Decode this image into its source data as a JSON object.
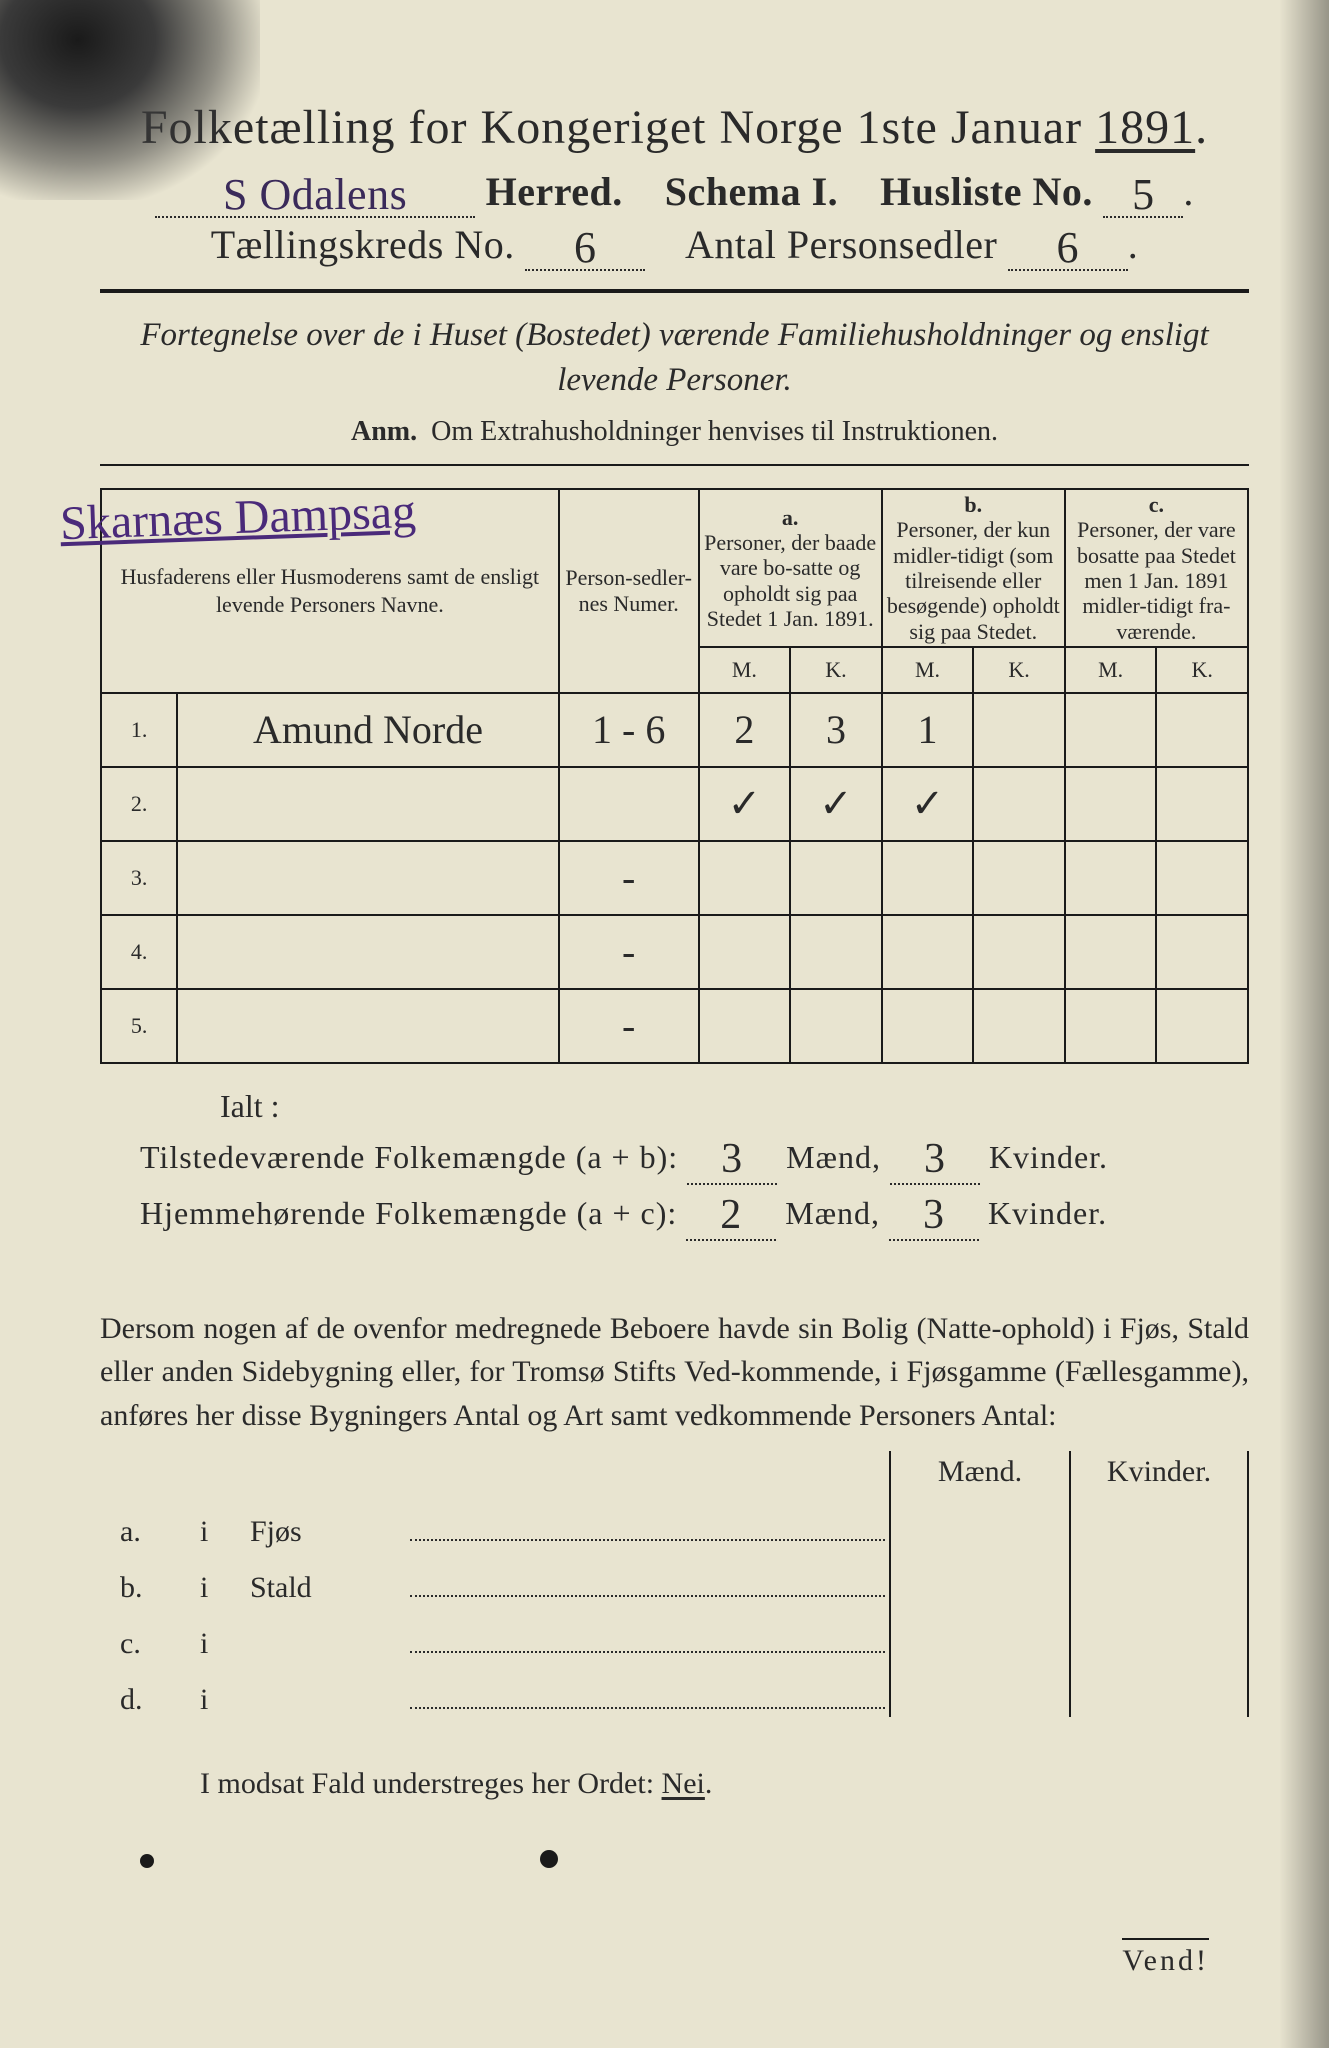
{
  "title": {
    "pre": "Folketælling for Kongeriget Norge 1ste Januar ",
    "year": "1891",
    "post": "."
  },
  "line2": {
    "herred_value": "S Odalens",
    "herred_label": "Herred.",
    "schema_label": "Schema I.",
    "husliste_label": "Husliste No.",
    "husliste_value": "5"
  },
  "line3": {
    "kreds_label": "Tællingskreds No.",
    "kreds_value": "6",
    "antal_label": "Antal Personsedler",
    "antal_value": "6"
  },
  "subtitle": "Fortegnelse over de i Huset (Bostedet) værende Familiehusholdninger og ensligt levende Personer.",
  "anm": {
    "label": "Anm.",
    "text": "Om Extrahusholdninger henvises til Instruktionen."
  },
  "place_handwritten": "Skarnæs Dampsag",
  "columns": {
    "names": "Husfaderens eller Husmoderens samt de ensligt levende Personers Navne.",
    "numer": "Person-sedler-nes Numer.",
    "a": {
      "tag": "a.",
      "text": "Personer, der baade vare bo-satte og opholdt sig paa Stedet 1 Jan. 1891."
    },
    "b": {
      "tag": "b.",
      "text": "Personer, der kun midler-tidigt (som tilreisende eller besøgende) opholdt sig paa Stedet."
    },
    "c": {
      "tag": "c.",
      "text": "Personer, der vare bosatte paa Stedet men 1 Jan. 1891 midler-tidigt fra-værende."
    },
    "m": "M.",
    "k": "K."
  },
  "rows": [
    {
      "n": "1.",
      "name": "Amund Norde",
      "numer": "1 - 6",
      "am": "2",
      "ak": "3",
      "bm": "1",
      "bk": "",
      "cm": "",
      "ck": ""
    },
    {
      "n": "2.",
      "name": "",
      "numer": "",
      "am": "✓",
      "ak": "✓",
      "bm": "✓",
      "bk": "",
      "cm": "",
      "ck": ""
    },
    {
      "n": "3.",
      "name": "",
      "numer": "-",
      "am": "",
      "ak": "",
      "bm": "",
      "bk": "",
      "cm": "",
      "ck": ""
    },
    {
      "n": "4.",
      "name": "",
      "numer": "-",
      "am": "",
      "ak": "",
      "bm": "",
      "bk": "",
      "cm": "",
      "ck": ""
    },
    {
      "n": "5.",
      "name": "",
      "numer": "-",
      "am": "",
      "ak": "",
      "bm": "",
      "bk": "",
      "cm": "",
      "ck": ""
    }
  ],
  "ialt": "Ialt :",
  "sum1": {
    "label": "Tilstedeværende Folkemængde (a + b):",
    "m": "3",
    "ml": "Mænd,",
    "k": "3",
    "kl": "Kvinder."
  },
  "sum2": {
    "label": "Hjemmehørende Folkemængde (a + c):",
    "m": "2",
    "ml": "Mænd,",
    "k": "3",
    "kl": "Kvinder."
  },
  "para": "Dersom nogen af de ovenfor medregnede Beboere havde sin Bolig (Natte-ophold) i Fjøs, Stald eller anden Sidebygning eller, for Tromsø Stifts Ved-kommende, i Fjøsgamme (Fællesgamme), anføres her disse Bygningers Antal og Art samt vedkommende Personers Antal:",
  "mk": {
    "m": "Mænd.",
    "k": "Kvinder."
  },
  "bldg": [
    {
      "l": "a.",
      "s": "i",
      "n": "Fjøs"
    },
    {
      "l": "b.",
      "s": "i",
      "n": "Stald"
    },
    {
      "l": "c.",
      "s": "i",
      "n": ""
    },
    {
      "l": "d.",
      "s": "i",
      "n": ""
    }
  ],
  "nei": {
    "pre": "I modsat Fald understreges her Ordet: ",
    "word": "Nei",
    "post": "."
  },
  "vend": "Vend!",
  "colors": {
    "paper": "#e8e4d0",
    "ink": "#2a2a2a",
    "hand_purple": "#4a2a7a",
    "rule": "#1a1a1a"
  },
  "fonts": {
    "body_pt": 30,
    "title_pt": 48,
    "hand_pt": 44
  }
}
